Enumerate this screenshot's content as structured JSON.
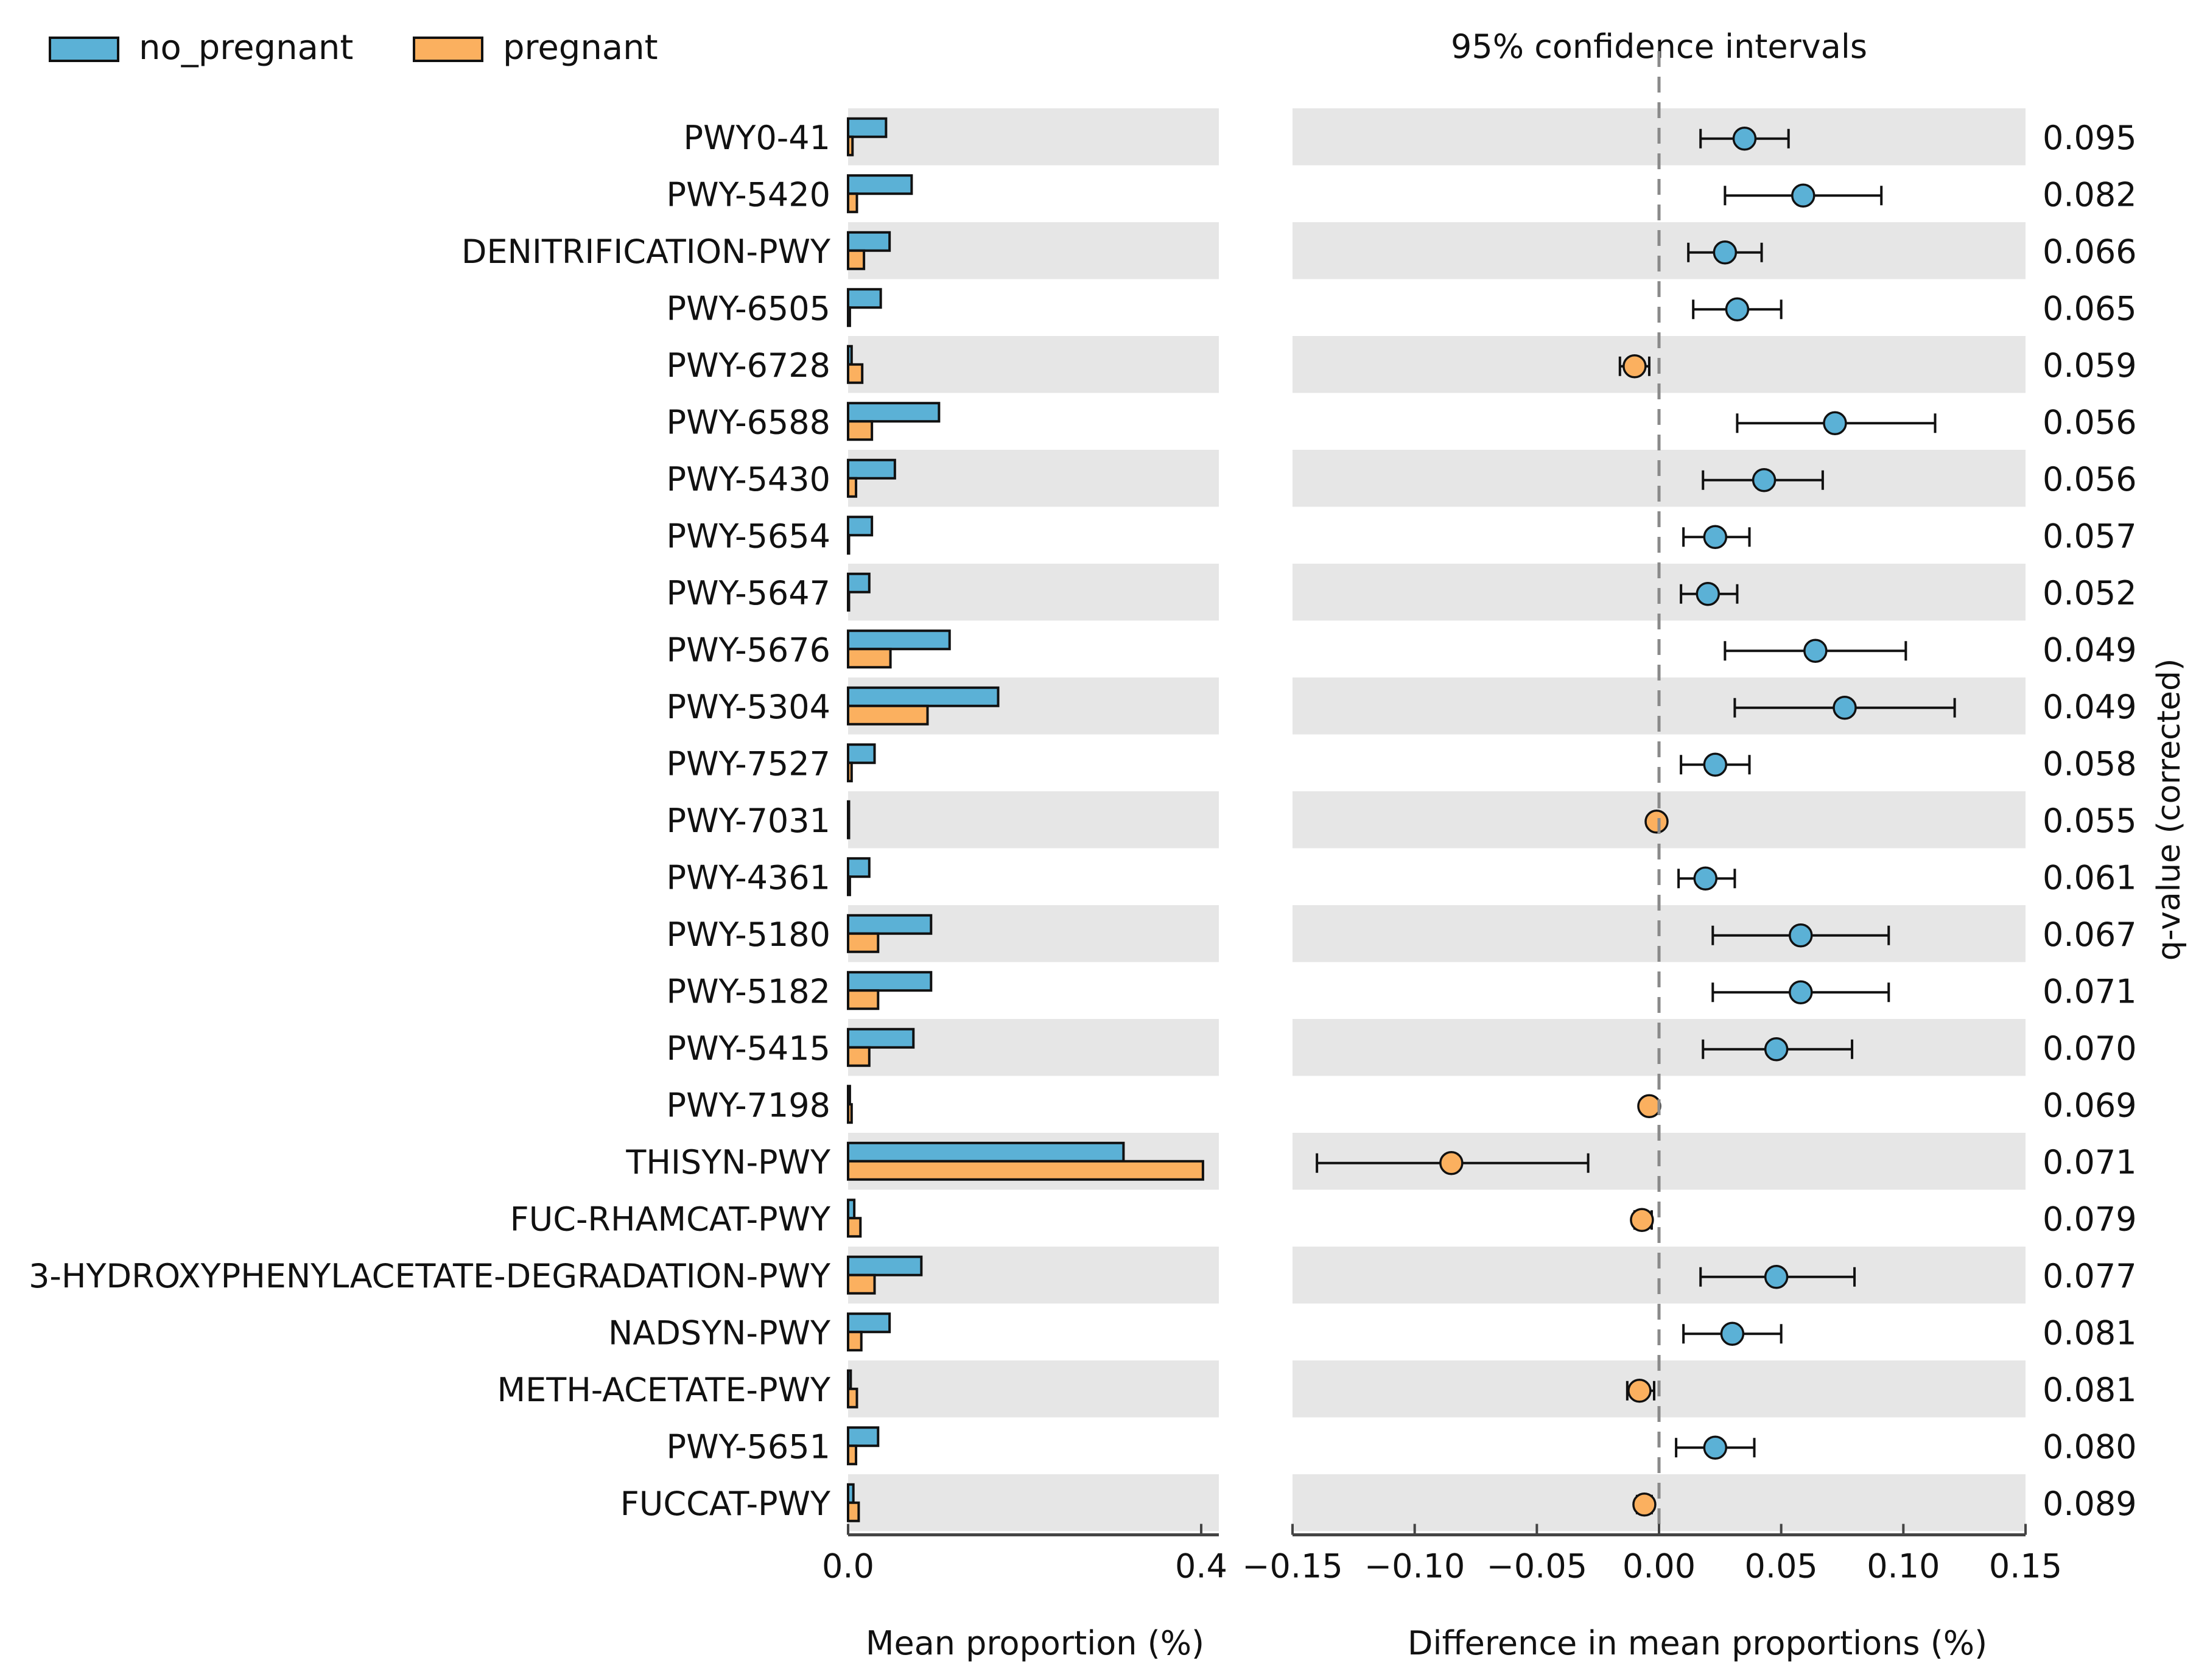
{
  "legend": [
    {
      "name": "no_pregnant",
      "color": "#5bb1d6"
    },
    {
      "name": "pregnant",
      "color": "#fbb05f"
    }
  ],
  "colors": {
    "row_shade": "#e6e6e6",
    "axis": "#444444",
    "zero_line": "#8a8a8a",
    "text": "#111111"
  },
  "chart_data": [
    {
      "type": "bar",
      "orientation": "horizontal",
      "title": "",
      "xlabel": "Mean proportion (%)",
      "ylabel": "",
      "xlim": [
        0,
        0.42
      ],
      "xticks": [
        "0.0",
        "0.4"
      ],
      "xtick_values": [
        0.0,
        0.4
      ],
      "categories": [
        "PWY0-41",
        "PWY-5420",
        "DENITRIFICATION-PWY",
        "PWY-6505",
        "PWY-6728",
        "PWY-6588",
        "PWY-5430",
        "PWY-5654",
        "PWY-5647",
        "PWY-5676",
        "PWY-5304",
        "PWY-7527",
        "PWY-7031",
        "PWY-4361",
        "PWY-5180",
        "PWY-5182",
        "PWY-5415",
        "PWY-7198",
        "THISYN-PWY",
        "FUC-RHAMCAT-PWY",
        "3-HYDROXYPHENYLACETATE-DEGRADATION-PWY",
        "NADSYN-PWY",
        "METH-ACETATE-PWY",
        "PWY-5651",
        "FUCCAT-PWY"
      ],
      "series": [
        {
          "name": "no_pregnant",
          "values": [
            0.043,
            0.072,
            0.047,
            0.037,
            0.004,
            0.103,
            0.053,
            0.027,
            0.024,
            0.115,
            0.17,
            0.03,
            0.001,
            0.024,
            0.094,
            0.094,
            0.074,
            0.002,
            0.312,
            0.007,
            0.083,
            0.047,
            0.003,
            0.034,
            0.006
          ]
        },
        {
          "name": "pregnant",
          "values": [
            0.005,
            0.01,
            0.018,
            0.002,
            0.016,
            0.027,
            0.009,
            0.001,
            0.001,
            0.048,
            0.09,
            0.004,
            0.0,
            0.002,
            0.034,
            0.034,
            0.024,
            0.004,
            0.402,
            0.014,
            0.03,
            0.015,
            0.01,
            0.009,
            0.012
          ]
        }
      ]
    },
    {
      "type": "scatter",
      "variant": "confidence-interval",
      "title": "95% confidence intervals",
      "xlabel": "Difference in mean proportions (%)",
      "right_axis_label": "q-value (corrected)",
      "xlim": [
        -0.15,
        0.15
      ],
      "xticks": [
        "−0.15",
        "−0.10",
        "−0.05",
        "0.00",
        "0.05",
        "0.10",
        "0.15"
      ],
      "xtick_values": [
        -0.15,
        -0.1,
        -0.05,
        0.0,
        0.05,
        0.1,
        0.15
      ],
      "points": [
        {
          "label": "PWY0-41",
          "mean": 0.035,
          "lower": 0.017,
          "upper": 0.053,
          "group": "no_pregnant",
          "qvalue": "0.095"
        },
        {
          "label": "PWY-5420",
          "mean": 0.059,
          "lower": 0.027,
          "upper": 0.091,
          "group": "no_pregnant",
          "qvalue": "0.082"
        },
        {
          "label": "DENITRIFICATION-PWY",
          "mean": 0.027,
          "lower": 0.012,
          "upper": 0.042,
          "group": "no_pregnant",
          "qvalue": "0.066"
        },
        {
          "label": "PWY-6505",
          "mean": 0.032,
          "lower": 0.014,
          "upper": 0.05,
          "group": "no_pregnant",
          "qvalue": "0.065"
        },
        {
          "label": "PWY-6728",
          "mean": -0.01,
          "lower": -0.016,
          "upper": -0.004,
          "group": "pregnant",
          "qvalue": "0.059"
        },
        {
          "label": "PWY-6588",
          "mean": 0.072,
          "lower": 0.032,
          "upper": 0.113,
          "group": "no_pregnant",
          "qvalue": "0.056"
        },
        {
          "label": "PWY-5430",
          "mean": 0.043,
          "lower": 0.018,
          "upper": 0.067,
          "group": "no_pregnant",
          "qvalue": "0.056"
        },
        {
          "label": "PWY-5654",
          "mean": 0.023,
          "lower": 0.01,
          "upper": 0.037,
          "group": "no_pregnant",
          "qvalue": "0.057"
        },
        {
          "label": "PWY-5647",
          "mean": 0.02,
          "lower": 0.009,
          "upper": 0.032,
          "group": "no_pregnant",
          "qvalue": "0.052"
        },
        {
          "label": "PWY-5676",
          "mean": 0.064,
          "lower": 0.027,
          "upper": 0.101,
          "group": "no_pregnant",
          "qvalue": "0.049"
        },
        {
          "label": "PWY-5304",
          "mean": 0.076,
          "lower": 0.031,
          "upper": 0.121,
          "group": "no_pregnant",
          "qvalue": "0.049"
        },
        {
          "label": "PWY-7527",
          "mean": 0.023,
          "lower": 0.009,
          "upper": 0.037,
          "group": "no_pregnant",
          "qvalue": "0.058"
        },
        {
          "label": "PWY-7031",
          "mean": -0.001,
          "lower": -0.002,
          "upper": 0.0,
          "group": "pregnant",
          "qvalue": "0.055"
        },
        {
          "label": "PWY-4361",
          "mean": 0.019,
          "lower": 0.008,
          "upper": 0.031,
          "group": "no_pregnant",
          "qvalue": "0.061"
        },
        {
          "label": "PWY-5180",
          "mean": 0.058,
          "lower": 0.022,
          "upper": 0.094,
          "group": "no_pregnant",
          "qvalue": "0.067"
        },
        {
          "label": "PWY-5182",
          "mean": 0.058,
          "lower": 0.022,
          "upper": 0.094,
          "group": "no_pregnant",
          "qvalue": "0.071"
        },
        {
          "label": "PWY-5415",
          "mean": 0.048,
          "lower": 0.018,
          "upper": 0.079,
          "group": "no_pregnant",
          "qvalue": "0.070"
        },
        {
          "label": "PWY-7198",
          "mean": -0.004,
          "lower": -0.006,
          "upper": -0.002,
          "group": "pregnant",
          "qvalue": "0.069"
        },
        {
          "label": "THISYN-PWY",
          "mean": -0.085,
          "lower": -0.14,
          "upper": -0.029,
          "group": "pregnant",
          "qvalue": "0.071"
        },
        {
          "label": "FUC-RHAMCAT-PWY",
          "mean": -0.007,
          "lower": -0.01,
          "upper": -0.003,
          "group": "pregnant",
          "qvalue": "0.079"
        },
        {
          "label": "3-HYDROXYPHENYLACETATE-DEGRADATION-PWY",
          "mean": 0.048,
          "lower": 0.017,
          "upper": 0.08,
          "group": "no_pregnant",
          "qvalue": "0.077"
        },
        {
          "label": "NADSYN-PWY",
          "mean": 0.03,
          "lower": 0.01,
          "upper": 0.05,
          "group": "no_pregnant",
          "qvalue": "0.081"
        },
        {
          "label": "METH-ACETATE-PWY",
          "mean": -0.008,
          "lower": -0.013,
          "upper": -0.002,
          "group": "pregnant",
          "qvalue": "0.081"
        },
        {
          "label": "PWY-5651",
          "mean": 0.023,
          "lower": 0.007,
          "upper": 0.039,
          "group": "no_pregnant",
          "qvalue": "0.080"
        },
        {
          "label": "FUCCAT-PWY",
          "mean": -0.006,
          "lower": -0.009,
          "upper": -0.003,
          "group": "pregnant",
          "qvalue": "0.089"
        }
      ]
    }
  ]
}
